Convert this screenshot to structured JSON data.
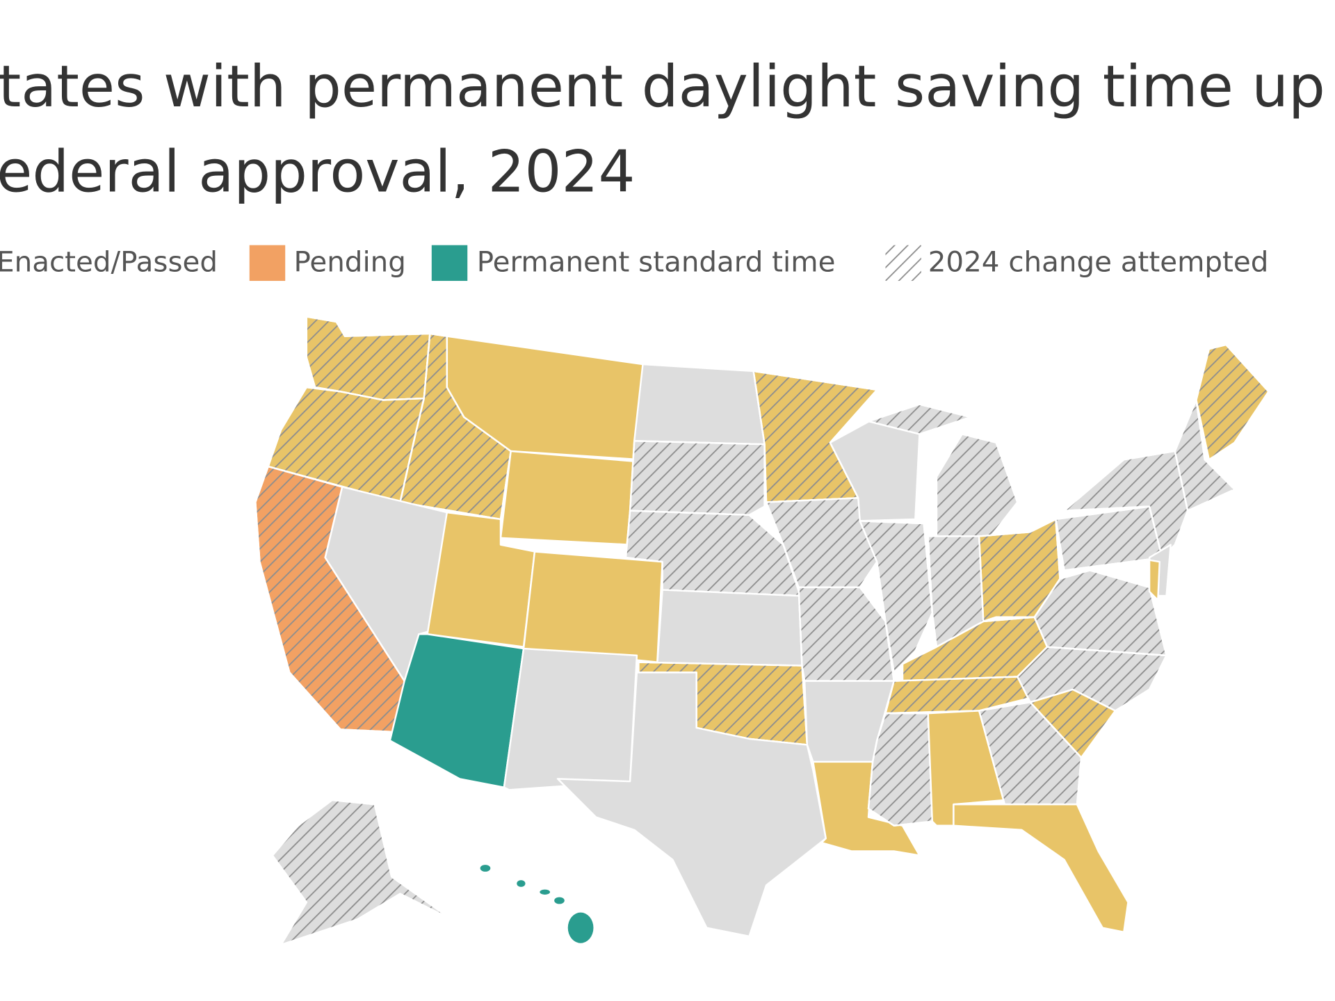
{
  "title": {
    "line1": "tates with permanent daylight saving time up",
    "line2": "ederal approval, 2024"
  },
  "legend": {
    "items": [
      "Enacted/Passed",
      "Pending",
      "Permanent standard time",
      "2024 change attempted"
    ]
  }
}
